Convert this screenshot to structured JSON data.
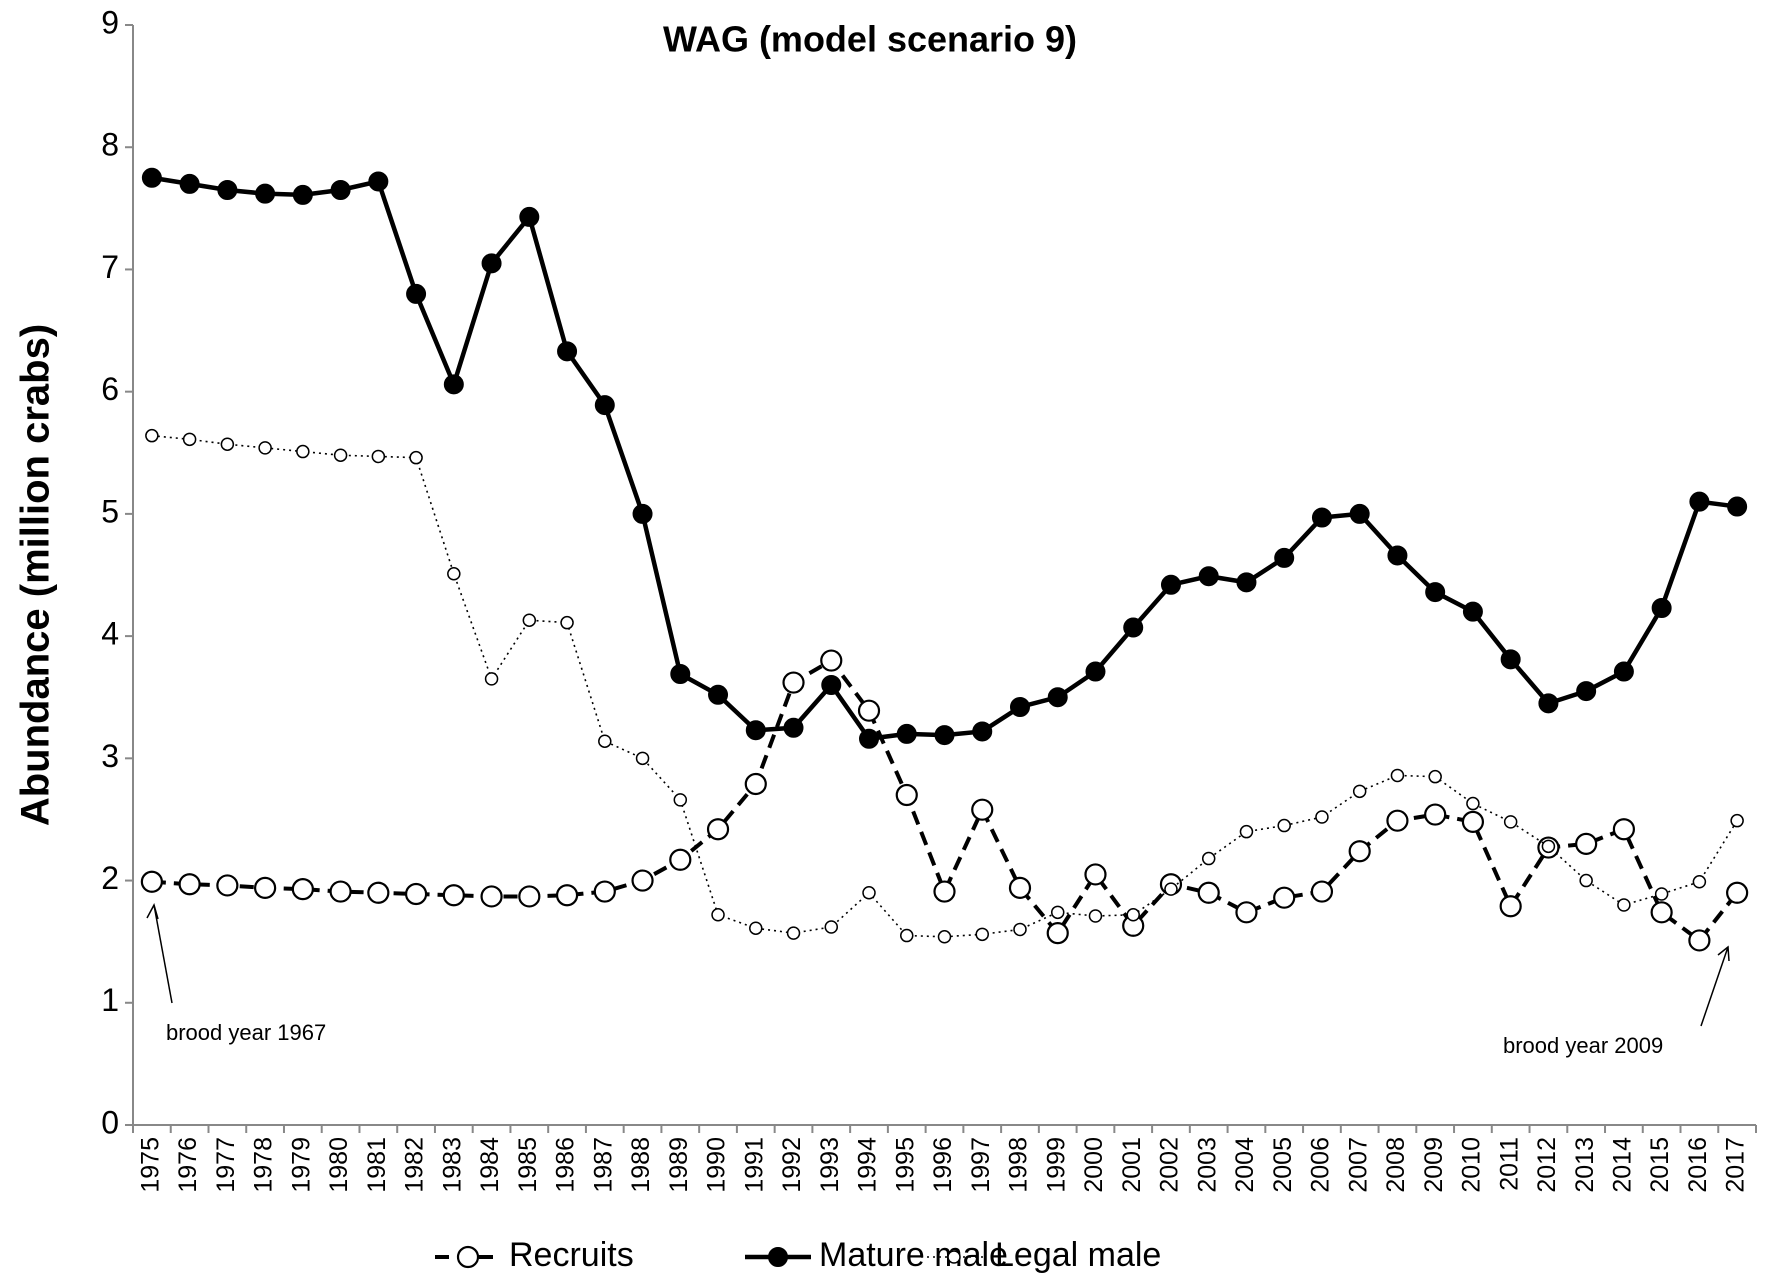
{
  "chart_data": {
    "type": "line",
    "title": "WAG (model scenario 9)",
    "y_label": "Abundance (million crabs)",
    "categories": [
      "1975",
      "1976",
      "1977",
      "1978",
      "1979",
      "1980",
      "1981",
      "1982",
      "1983",
      "1984",
      "1985",
      "1986",
      "1987",
      "1988",
      "1989",
      "1990",
      "1991",
      "1992",
      "1993",
      "1994",
      "1995",
      "1996",
      "1997",
      "1998",
      "1999",
      "2000",
      "2001",
      "2002",
      "2003",
      "2004",
      "2005",
      "2006",
      "2007",
      "2008",
      "2009",
      "2010",
      "2011",
      "2012",
      "2013",
      "2014",
      "2015",
      "2016",
      "2017"
    ],
    "series": [
      {
        "name": "Recruits",
        "color": "#000000",
        "values": [
          1.99,
          1.97,
          1.96,
          1.94,
          1.93,
          1.91,
          1.9,
          1.89,
          1.88,
          1.87,
          1.87,
          1.88,
          1.91,
          2.0,
          2.17,
          2.42,
          2.79,
          3.62,
          3.8,
          3.39,
          2.7,
          1.91,
          2.58,
          1.94,
          1.57,
          2.05,
          1.63,
          1.97,
          1.9,
          1.74,
          1.86,
          1.91,
          2.24,
          2.49,
          2.54,
          2.48,
          1.79,
          2.27,
          2.3,
          2.42,
          1.74,
          1.51,
          1.9
        ]
      },
      {
        "name": "Mature male",
        "color": "#000000",
        "values": [
          7.75,
          7.7,
          7.65,
          7.62,
          7.61,
          7.65,
          7.72,
          6.8,
          6.06,
          7.05,
          7.43,
          6.33,
          5.89,
          5.0,
          3.69,
          3.52,
          3.23,
          3.25,
          3.6,
          3.16,
          3.2,
          3.19,
          3.22,
          3.42,
          3.5,
          3.71,
          4.07,
          4.42,
          4.49,
          4.44,
          4.64,
          4.97,
          5.0,
          4.66,
          4.36,
          4.2,
          3.81,
          3.45,
          3.55,
          3.71,
          4.23,
          5.1,
          5.06
        ]
      },
      {
        "name": "Legal male",
        "color": "#000000",
        "values": [
          5.64,
          5.61,
          5.57,
          5.54,
          5.51,
          5.48,
          5.47,
          5.46,
          4.51,
          3.65,
          4.13,
          4.11,
          3.14,
          3.0,
          2.66,
          1.72,
          1.61,
          1.57,
          1.62,
          1.9,
          1.55,
          1.54,
          1.56,
          1.6,
          1.74,
          1.71,
          1.72,
          1.93,
          2.18,
          2.4,
          2.45,
          2.52,
          2.73,
          2.86,
          2.85,
          2.63,
          2.48,
          2.28,
          2.0,
          1.8,
          1.89,
          1.99,
          2.49
        ]
      }
    ],
    "annotations": [
      "brood year 1967",
      "brood year 2009"
    ],
    "ylim": [
      0,
      9
    ],
    "yticks": [
      0,
      1,
      2,
      3,
      4,
      5,
      6,
      7,
      8,
      9
    ],
    "grid": false
  }
}
